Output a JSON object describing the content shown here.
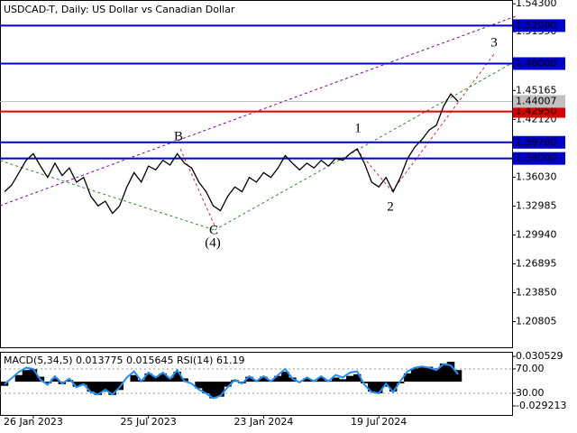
{
  "chart_data": [
    {
      "type": "line",
      "title": "USDCAD-T, Daily:  US Dollar vs Canadian Dollar",
      "categories": [
        null,
        null,
        null,
        null,
        "26 Jan 2023",
        null,
        null,
        null,
        null,
        null,
        null,
        null,
        null,
        null,
        null,
        null,
        null,
        null,
        null,
        null,
        "25 Jul 2023",
        null,
        null,
        null,
        null,
        null,
        null,
        null,
        null,
        null,
        null,
        null,
        null,
        null,
        null,
        null,
        "23 Jan 2024",
        null,
        null,
        null,
        null,
        null,
        null,
        null,
        null,
        null,
        null,
        null,
        null,
        null,
        null,
        null,
        "19 Jul 2024",
        null,
        null,
        null,
        null,
        null,
        null,
        null,
        null,
        null,
        null,
        null
      ],
      "values": [
        1.345,
        1.352,
        1.365,
        1.378,
        1.385,
        1.372,
        1.36,
        1.375,
        1.362,
        1.37,
        1.355,
        1.36,
        1.34,
        1.33,
        1.335,
        1.322,
        1.33,
        1.35,
        1.365,
        1.355,
        1.372,
        1.368,
        1.378,
        1.373,
        1.385,
        1.375,
        1.37,
        1.355,
        1.345,
        1.33,
        1.325,
        1.34,
        1.35,
        1.345,
        1.36,
        1.355,
        1.365,
        1.36,
        1.37,
        1.383,
        1.375,
        1.368,
        1.375,
        1.37,
        1.378,
        1.372,
        1.38,
        1.378,
        1.385,
        1.39,
        1.375,
        1.355,
        1.35,
        1.36,
        1.345,
        1.36,
        1.38,
        1.392,
        1.4,
        1.41,
        1.415,
        1.435,
        1.448,
        1.44
      ],
      "color": "#000000",
      "ylim": [
        1.18,
        1.547
      ],
      "yticks": [
        {
          "value": 1.543,
          "label": "1.54300"
        },
        {
          "value": 1.5135,
          "label": "1.51350"
        },
        {
          "value": 1.45165,
          "label": "1.45165"
        },
        {
          "value": 1.4212,
          "label": "1.42120"
        },
        {
          "value": 1.3603,
          "label": "1.36030"
        },
        {
          "value": 1.32985,
          "label": "1.32985"
        },
        {
          "value": 1.2994,
          "label": "1.29940"
        },
        {
          "value": 1.26895,
          "label": "1.26895"
        },
        {
          "value": 1.2385,
          "label": "1.23850"
        },
        {
          "value": 1.20805,
          "label": "1.20805"
        }
      ],
      "levels": [
        {
          "value": 1.52,
          "label": "1.52000",
          "color": "#0000cc"
        },
        {
          "value": 1.48,
          "label": "1.48000",
          "color": "#0000cc"
        },
        {
          "value": 1.4295,
          "label": "1.42950",
          "color": "#dd0000"
        },
        {
          "value": 1.397,
          "label": "1.39700",
          "color": "#0000cc"
        },
        {
          "value": 1.38,
          "label": "1.38000",
          "color": "#0000cc"
        }
      ],
      "current_price": {
        "value": 1.44007,
        "label": "1.44007",
        "color": "#c0c0c0"
      },
      "annotations": [
        {
          "text": "B",
          "color": "#a03030"
        },
        {
          "text": "C",
          "color": "#a03030"
        },
        {
          "text": "(4)",
          "color": "#2e8b2e"
        },
        {
          "text": "1",
          "color": "#a03030"
        },
        {
          "text": "2",
          "color": "#a03030"
        },
        {
          "text": "3",
          "color": "#a03030"
        }
      ]
    },
    {
      "type": "combo",
      "title": "MACD(5,34,5) 0.013775 0.015645 RSI(14) 61.19",
      "ylim": [
        -0.0401,
        0.036
      ],
      "yticks": [
        0.030529,
        -0.029213
      ],
      "y2lim": [
        -5.6,
        98.1
      ],
      "y2ticks": [
        {
          "value": 70,
          "label": "70.00"
        },
        {
          "value": 30,
          "label": "30.00"
        }
      ],
      "series": [
        {
          "name": "MACD",
          "type": "bar",
          "color": "#000000",
          "values": [
            -0.005,
            0.0,
            0.008,
            0.014,
            0.015,
            0.006,
            -0.002,
            0.004,
            -0.003,
            0.002,
            -0.006,
            -0.004,
            -0.012,
            -0.016,
            -0.012,
            -0.016,
            -0.01,
            0.0,
            0.008,
            0.002,
            0.01,
            0.006,
            0.01,
            0.005,
            0.012,
            0.004,
            0.0,
            -0.008,
            -0.014,
            -0.02,
            -0.018,
            -0.006,
            0.002,
            -0.002,
            0.006,
            0.002,
            0.006,
            0.002,
            0.007,
            0.012,
            0.005,
            0.0,
            0.004,
            0.001,
            0.005,
            0.001,
            0.005,
            0.003,
            0.007,
            0.009,
            -0.002,
            -0.012,
            -0.014,
            -0.006,
            -0.012,
            -0.002,
            0.01,
            0.016,
            0.018,
            0.018,
            0.016,
            0.022,
            0.024,
            0.014
          ]
        },
        {
          "name": "RSI",
          "type": "line",
          "axis": "y2",
          "color": "#1e90ff",
          "values": [
            45,
            55,
            65,
            72,
            70,
            52,
            44,
            58,
            46,
            54,
            40,
            45,
            32,
            28,
            36,
            28,
            40,
            56,
            66,
            50,
            64,
            56,
            64,
            54,
            68,
            50,
            46,
            36,
            30,
            22,
            26,
            40,
            52,
            46,
            58,
            50,
            58,
            50,
            60,
            70,
            54,
            48,
            56,
            50,
            58,
            50,
            60,
            56,
            64,
            66,
            44,
            32,
            30,
            46,
            32,
            50,
            66,
            72,
            74,
            72,
            68,
            78,
            76,
            61.19
          ]
        }
      ]
    }
  ]
}
